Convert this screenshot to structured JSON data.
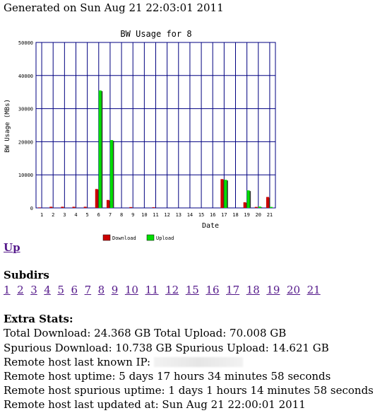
{
  "header": {
    "generated": "Generated on Sun Aug 21 22:03:01 2011"
  },
  "chart_data": {
    "type": "bar",
    "title": "BW Usage for 8",
    "xlabel": "Date",
    "ylabel": "BW Usage (MBs)",
    "ylim": [
      0,
      50000
    ],
    "yticks": [
      "0",
      "10000",
      "20000",
      "30000",
      "40000",
      "50000"
    ],
    "grid": true,
    "legend_position": "bottom",
    "categories": [
      "1",
      "2",
      "3",
      "4",
      "5",
      "6",
      "7",
      "8",
      "9",
      "10",
      "11",
      "12",
      "13",
      "14",
      "15",
      "16",
      "17",
      "18",
      "19",
      "20",
      "21"
    ],
    "series": [
      {
        "name": "Download",
        "color": "#cc0000",
        "values": [
          150,
          350,
          350,
          350,
          350,
          5700,
          2400,
          0,
          250,
          0,
          200,
          0,
          0,
          0,
          0,
          0,
          8700,
          0,
          1700,
          300,
          3300
        ]
      },
      {
        "name": "Upload",
        "color": "#00dd00",
        "values": [
          0,
          0,
          0,
          0,
          0,
          35500,
          20500,
          0,
          0,
          0,
          0,
          0,
          0,
          0,
          0,
          0,
          8500,
          0,
          5300,
          400,
          300
        ]
      }
    ]
  },
  "nav": {
    "up_label": "Up"
  },
  "subdirs": {
    "heading": "Subdirs",
    "items": [
      "1",
      "2",
      "3",
      "4",
      "5",
      "6",
      "7",
      "8",
      "9",
      "10",
      "11",
      "12",
      "15",
      "16",
      "17",
      "18",
      "19",
      "20",
      "21"
    ]
  },
  "extra": {
    "heading": "Extra Stats:",
    "line1": "Total Download: 24.368 GB Total Upload: 70.008 GB",
    "line2": "Spurious Download: 10.738 GB Spurious Upload: 14.621 GB",
    "line3": "Remote host last known IP:",
    "line4": "Remote host uptime: 5 days 17 hours 34 minutes 58 seconds",
    "line5": "Remote host spurious uptime: 1 days 1 hours 14 minutes 58 seconds",
    "line6": "Remote host last updated at: Sun Aug 21 22:00:01 2011"
  }
}
